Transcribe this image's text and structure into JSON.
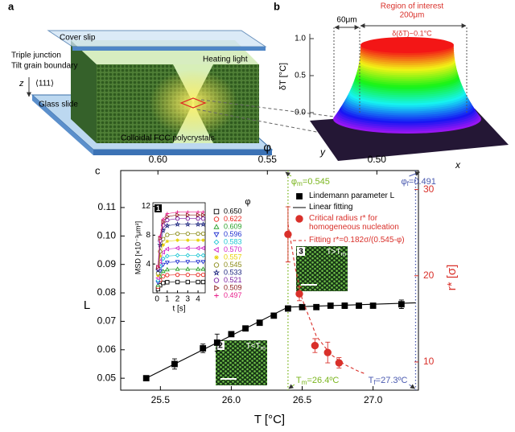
{
  "figure_a": {
    "label": "a",
    "cover_slip": "Cover slip",
    "triple_junction": "Triple junction",
    "tilt_grain_boundary": "Tilt grain boundary",
    "heating_light": "Heating light",
    "z": "z",
    "direction": "⟨111⟩",
    "glass_slide": "Glass slide",
    "crystal": "Colloidal FCC polycrystals"
  },
  "figure_b": {
    "label": "b",
    "region": "Region of interest",
    "width": "200μm",
    "edge": "60μm",
    "precision": "δ(δT)~0.1°C",
    "axis_label": "δT [°C]",
    "ticks": [
      {
        "value": 1,
        "label": "1.0"
      },
      {
        "value": 0.5,
        "label": "0.5"
      },
      {
        "value": 0,
        "label": "0.0"
      }
    ],
    "y": "y",
    "x": "x"
  },
  "chart_data": [
    {
      "type": "scatter",
      "panel_label": "c",
      "xlabel": "T [°C]",
      "ylabel": "L",
      "y2label": "r* [σ]",
      "x2label": "φ",
      "xlim": [
        25.22,
        27.32
      ],
      "ylim": [
        0.0458,
        0.123
      ],
      "y2lim": [
        6.73,
        32.2
      ],
      "x2lim": [
        0.617,
        0.481
      ],
      "xticks": [
        {
          "value": 25.5,
          "label": "25.5"
        },
        {
          "value": 26,
          "label": "26.0"
        },
        26.5,
        {
          "value": 27,
          "label": "27.0"
        }
      ],
      "yticks": [
        0.05,
        0.06,
        0.07,
        0.08,
        0.09,
        {
          "value": 0.1,
          "label": "0.10"
        },
        0.11
      ],
      "y2ticks": [
        10,
        20,
        30
      ],
      "x2ticks": [
        {
          "value": 0.6,
          "label": "0.60"
        },
        0.55,
        {
          "value": 0.5,
          "label": "0.50"
        }
      ],
      "series": [
        {
          "name": "Lindemann parameter L",
          "color": "#000000",
          "marker": "square",
          "filled": true,
          "x": [
            25.4,
            25.6,
            25.8,
            25.9,
            26.0,
            26.1,
            26.2,
            26.3,
            26.4,
            26.5,
            26.6,
            26.7,
            26.8,
            26.9,
            27.0,
            27.2
          ],
          "values": [
            0.05,
            0.055,
            0.0605,
            0.0625,
            0.0655,
            0.0675,
            0.0695,
            0.072,
            0.0745,
            0.075,
            0.075,
            0.0755,
            0.0755,
            0.0755,
            0.0755,
            0.076
          ],
          "errors": [
            0.0003,
            0.0018,
            0.0015,
            0.003,
            0.0008,
            0.0006,
            0.0006,
            0.0006,
            0.0008,
            0.0008,
            0.0008,
            0.0008,
            0.001,
            0.0008,
            0.0008,
            0.0015
          ]
        },
        {
          "name": "Linear fitting",
          "color": "#000000",
          "line_style": "solid",
          "x": [
            25.4,
            26.4,
            27.3
          ],
          "values": [
            0.05,
            0.075,
            0.0765
          ]
        },
        {
          "name": "Critical radius r* for homogeneous nucleation",
          "color": "#d9302a",
          "marker": "circle",
          "filled": true,
          "axis": "y2",
          "x": [
            26.4,
            26.48,
            26.59,
            26.68,
            26.76
          ],
          "values": [
            24.8,
            17.9,
            11.9,
            11.1,
            9.9
          ],
          "errors": [
            3.2,
            0.8,
            0.8,
            1.2,
            0.6
          ]
        },
        {
          "name": "Fitting r*=0.182σ/(0.545-φ)",
          "color": "#d9302a",
          "line_style": "dashed",
          "axis": "y2",
          "x": [
            26.4,
            26.45,
            26.5,
            26.6,
            26.7,
            26.8,
            26.9,
            26.95
          ],
          "values": [
            26,
            21,
            17.3,
            13,
            10.9,
            9.7,
            8.9,
            8.6
          ]
        }
      ],
      "ref_lines": [
        {
          "x": 26.4,
          "color": "#7ab51d",
          "top_label": [
            {
              "t": "φ"
            },
            {
              "t": "m",
              "sub": true
            },
            {
              "t": "=0.545"
            }
          ],
          "bottom_label": [
            {
              "t": "T"
            },
            {
              "t": "m",
              "sub": true
            },
            {
              "t": "=26.4ºC"
            }
          ]
        },
        {
          "x": 27.3,
          "color": "#4a5ab0",
          "top_label": [
            {
              "t": "φ"
            },
            {
              "t": "f",
              "sub": true
            },
            {
              "t": "=0.491"
            }
          ],
          "bottom_label": [
            {
              "t": "T"
            },
            {
              "t": "f",
              "sub": true
            },
            {
              "t": "=27.3ºC"
            }
          ]
        }
      ],
      "micrographs": [
        {
          "number": "2",
          "label": [
            {
              "t": "T<T"
            },
            {
              "t": "m",
              "sub": true
            }
          ]
        },
        {
          "number": "3",
          "label": [
            {
              "t": "T>T"
            },
            {
              "t": "m",
              "sub": true
            }
          ]
        }
      ]
    },
    {
      "type": "line",
      "panel_label": "1",
      "xlabel": "t [s]",
      "ylabel": "MSD [×10⁻³μm²]",
      "legend_title": "φ",
      "xlim": [
        -0.4,
        4.7
      ],
      "ylim": [
        0,
        12.5
      ],
      "xticks": [
        0,
        1,
        2,
        3,
        4
      ],
      "yticks": [
        4,
        8,
        12
      ],
      "x": [
        0.1,
        0.3,
        0.6,
        1,
        2,
        3,
        4,
        4.5
      ],
      "series": [
        {
          "name": "0.650",
          "color": "#000000",
          "marker": "square",
          "filled": false,
          "values": [
            0.5,
            1.05,
            1.37,
            1.47,
            1.5,
            1.5,
            1.5,
            1.5
          ]
        },
        {
          "name": "0.622",
          "color": "#e8261f",
          "marker": "circle",
          "filled": false,
          "values": [
            0.83,
            1.75,
            2.28,
            2.45,
            2.5,
            2.5,
            2.5,
            2.5
          ]
        },
        {
          "name": "0.609",
          "color": "#2aa02a",
          "marker": "triangle-up",
          "filled": false,
          "values": [
            1.09,
            2.31,
            3.0,
            3.23,
            3.3,
            3.3,
            3.3,
            3.3
          ]
        },
        {
          "name": "0.596",
          "color": "#2030d0",
          "marker": "triangle-down",
          "filled": false,
          "values": [
            1.42,
            3.01,
            3.91,
            4.21,
            4.3,
            4.3,
            4.3,
            4.3
          ]
        },
        {
          "name": "0.583",
          "color": "#1fc7d4",
          "marker": "diamond",
          "filled": false,
          "values": [
            1.72,
            3.64,
            4.73,
            5.1,
            5.2,
            5.2,
            5.2,
            5.2
          ]
        },
        {
          "name": "0.570",
          "color": "#d020c8",
          "marker": "triangle-left",
          "filled": false,
          "values": [
            2.05,
            4.34,
            5.64,
            6.08,
            6.2,
            6.2,
            6.2,
            6.2
          ]
        },
        {
          "name": "0.557",
          "color": "#e8d20a",
          "marker": "asterisk",
          "filled": false,
          "values": [
            2.41,
            5.11,
            6.64,
            7.15,
            7.3,
            7.3,
            7.3,
            7.3
          ]
        },
        {
          "name": "0.545",
          "color": "#8c8c1a",
          "marker": "circle",
          "filled": false,
          "values": [
            2.71,
            5.74,
            7.46,
            8.04,
            8.2,
            8.2,
            8.2,
            8.2
          ]
        },
        {
          "name": "0.533",
          "color": "#1a237e",
          "marker": "star",
          "filled": false,
          "values": [
            3.14,
            6.65,
            8.65,
            9.31,
            9.5,
            9.5,
            9.5,
            9.5
          ]
        },
        {
          "name": "0.521",
          "color": "#7b1fa2",
          "marker": "circle",
          "filled": false,
          "values": [
            3.4,
            7.21,
            9.37,
            10.09,
            10.3,
            10.3,
            10.3,
            10.3
          ]
        },
        {
          "name": "0.509",
          "color": "#8b1a1a",
          "marker": "triangle-right",
          "filled": false,
          "values": [
            3.56,
            7.56,
            9.83,
            10.58,
            10.8,
            10.8,
            10.8,
            10.8
          ]
        },
        {
          "name": "0.497",
          "color": "#e91e8c",
          "marker": "plus",
          "filled": false,
          "values": [
            3.7,
            7.84,
            10.19,
            10.98,
            11.2,
            11.2,
            11.2,
            11.2
          ]
        }
      ]
    }
  ]
}
